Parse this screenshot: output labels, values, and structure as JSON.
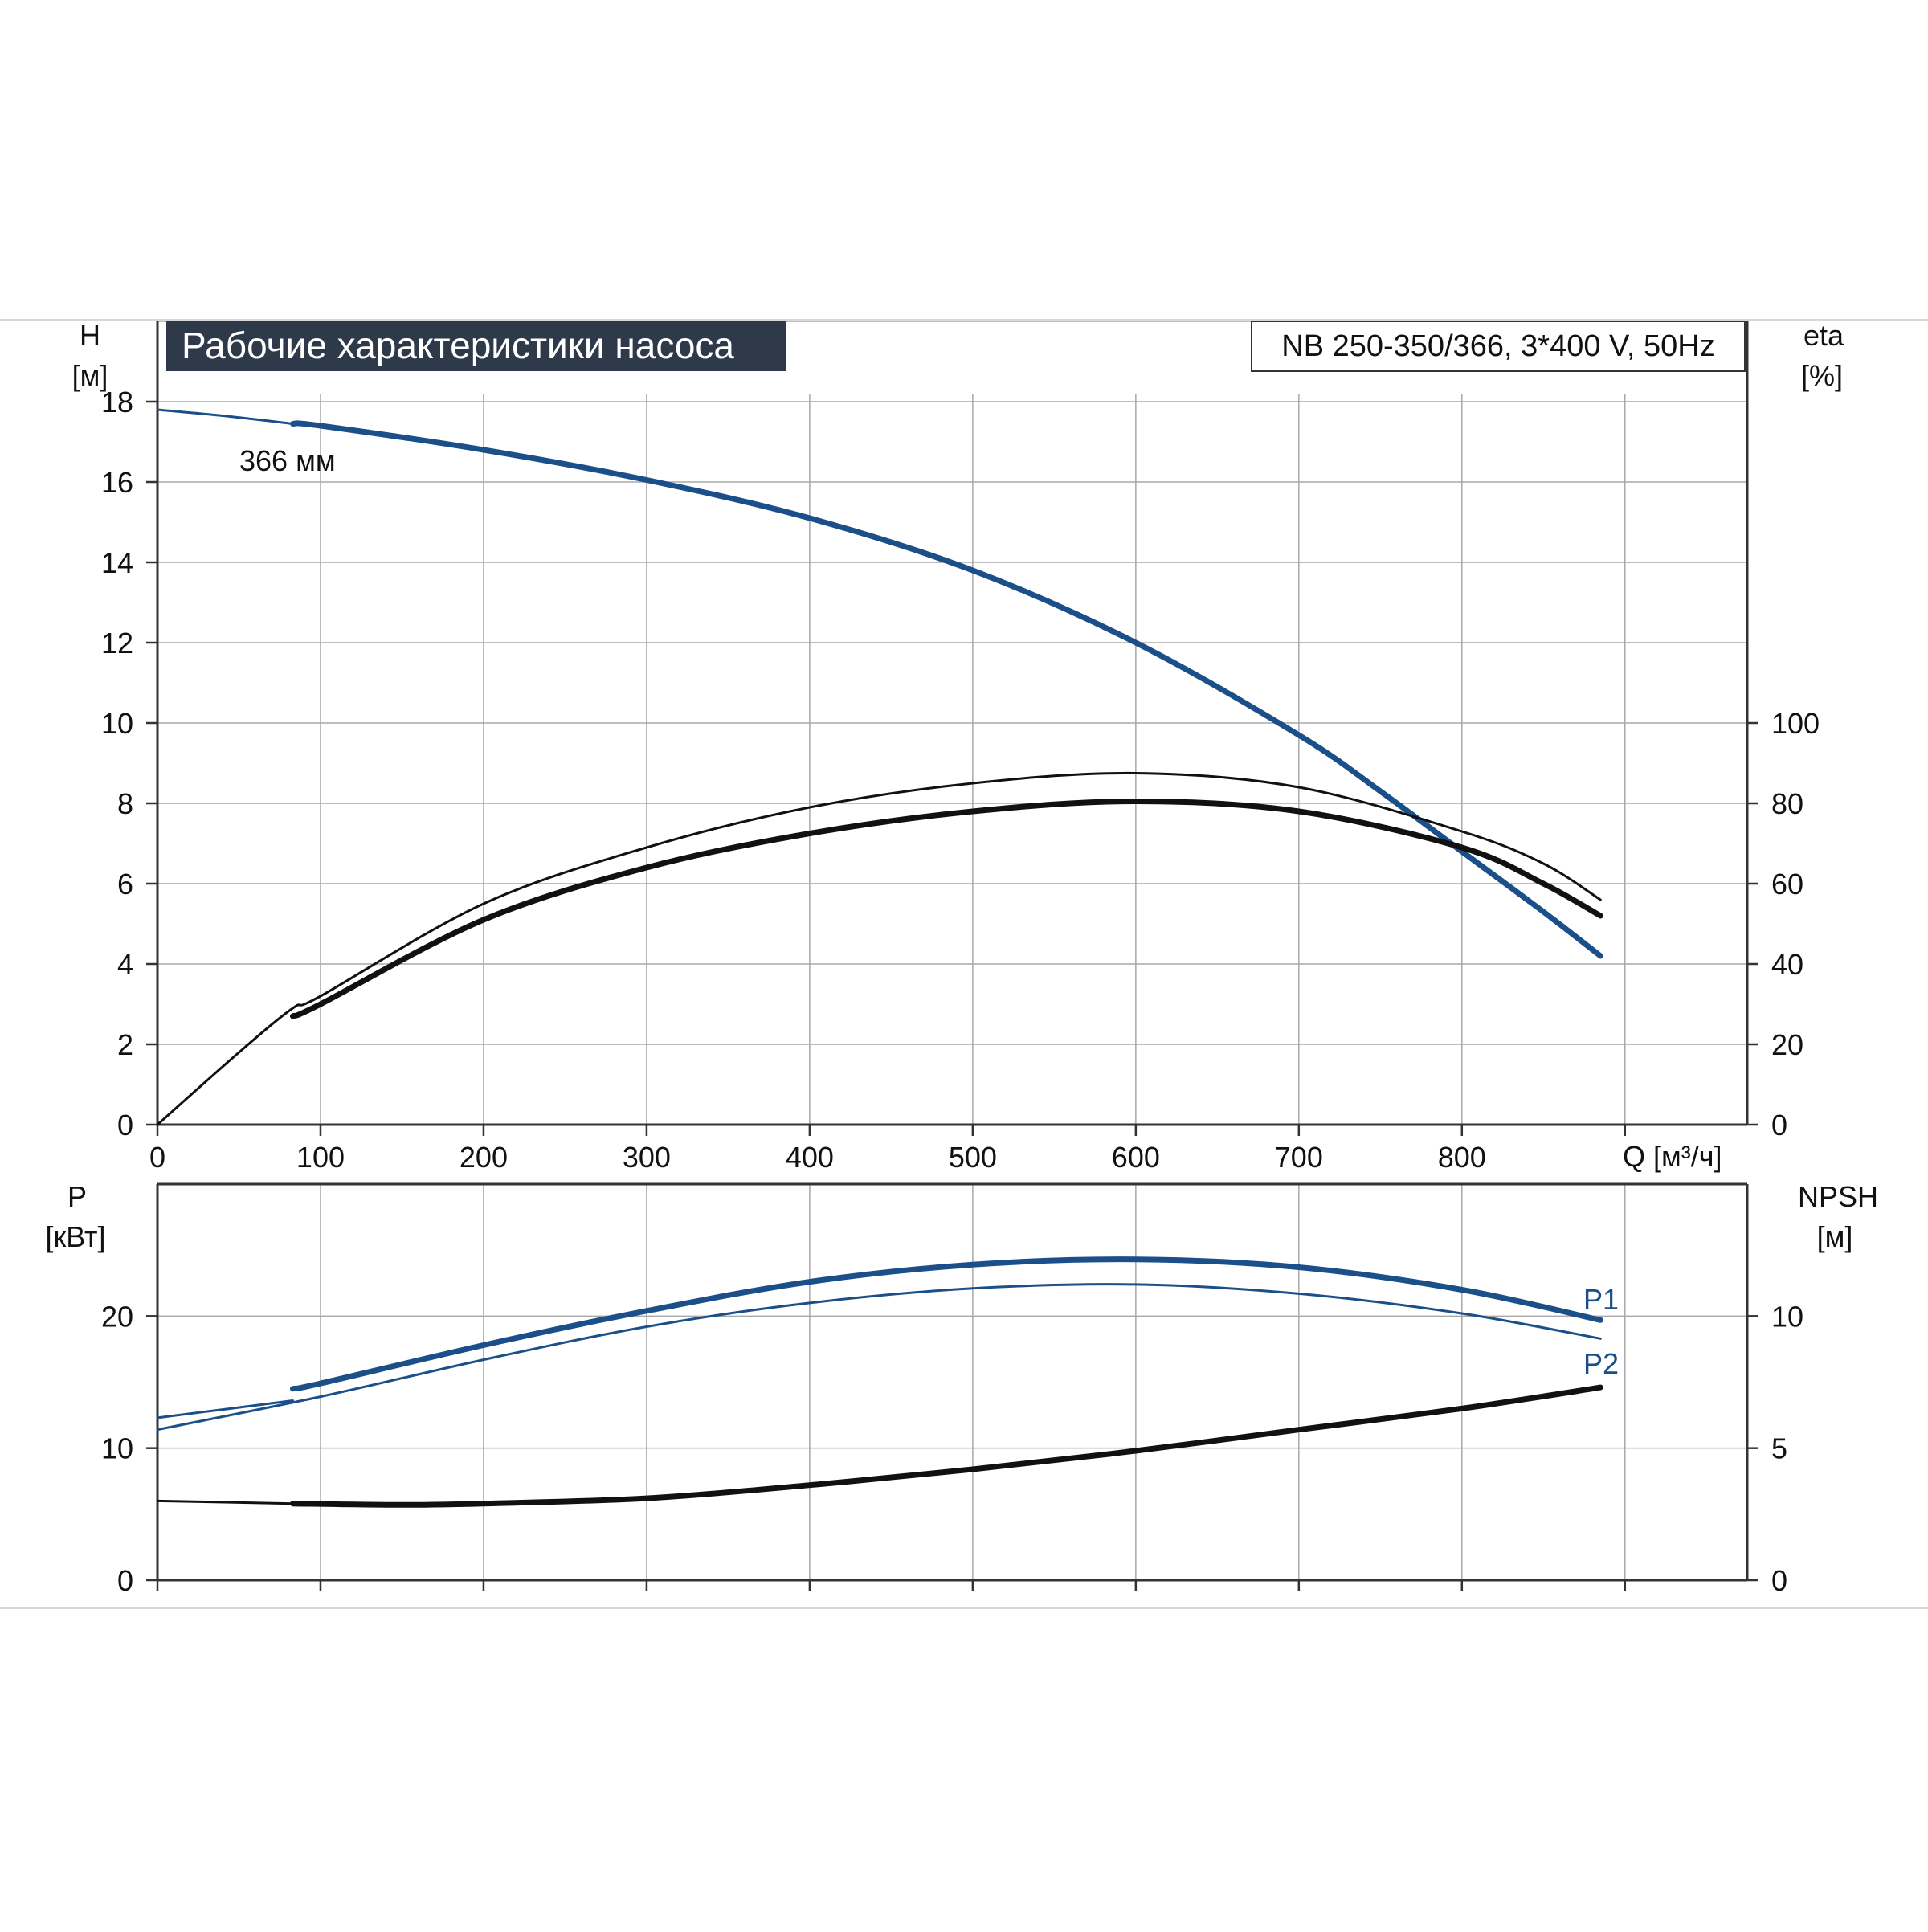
{
  "header": {
    "title": "Рабочие характеристики насоса",
    "model": "NB 250-350/366, 3*400 V, 50Hz"
  },
  "colors": {
    "title_bg": "#2e3a4a",
    "title_text": "#ffffff",
    "blue": "#1b4f8a",
    "black": "#111111",
    "grid": "#a8a8a8",
    "axis": "#333333"
  },
  "chart_data": [
    {
      "type": "line",
      "name": "upper",
      "x_axis": {
        "label": "Q [м³/ч]",
        "range": [
          0,
          975
        ],
        "ticks": [
          0,
          100,
          200,
          300,
          400,
          500,
          600,
          700,
          800
        ]
      },
      "y_left": {
        "label_line1": "H",
        "label_line2": "[м]",
        "range": [
          0,
          20
        ],
        "ticks": [
          0,
          2,
          4,
          6,
          8,
          10,
          12,
          14,
          16,
          18
        ]
      },
      "y_right": {
        "label_line1": "eta",
        "label_line2": "[%]",
        "range": [
          0,
          200
        ],
        "ticks": [
          0,
          20,
          40,
          60,
          80,
          100
        ]
      },
      "grid": true,
      "annotation": "366 мм",
      "series": [
        {
          "axis": "left",
          "color": "blue",
          "weight": "thin",
          "x": [
            0,
            40,
            83
          ],
          "y": [
            17.8,
            17.65,
            17.45
          ]
        },
        {
          "axis": "left",
          "color": "blue",
          "weight": "thick",
          "x": [
            83,
            100,
            200,
            300,
            400,
            500,
            600,
            700,
            750,
            800,
            850,
            885
          ],
          "y": [
            17.45,
            17.4,
            16.8,
            16.05,
            15.1,
            13.8,
            12.0,
            9.7,
            8.3,
            6.8,
            5.3,
            4.2
          ]
        },
        {
          "axis": "right",
          "color": "black",
          "weight": "thin",
          "x": [
            0,
            50,
            83,
            100,
            200,
            300,
            400,
            500,
            600,
            700,
            800,
            850,
            885
          ],
          "y": [
            0,
            18,
            29,
            32,
            55,
            69,
            79,
            85,
            87.5,
            84,
            73,
            65,
            56
          ]
        },
        {
          "axis": "right",
          "color": "black",
          "weight": "thick",
          "x": [
            83,
            100,
            200,
            300,
            400,
            500,
            600,
            700,
            800,
            850,
            885
          ],
          "y": [
            27,
            30,
            51,
            64,
            72.5,
            78,
            80.5,
            78,
            69,
            60,
            52
          ]
        }
      ]
    },
    {
      "type": "line",
      "name": "lower",
      "x_axis": {
        "range": [
          0,
          975
        ],
        "ticks": [
          0,
          100,
          200,
          300,
          400,
          500,
          600,
          700,
          800
        ]
      },
      "y_left": {
        "label_line1": "P",
        "label_line2": "[кВт]",
        "range": [
          0,
          30
        ],
        "ticks": [
          0,
          10,
          20
        ]
      },
      "y_right": {
        "label_line1": "NPSH",
        "label_line2": "[м]",
        "range": [
          0,
          15
        ],
        "ticks": [
          0,
          5,
          10
        ]
      },
      "grid": true,
      "series": [
        {
          "axis": "left",
          "name": "P1",
          "color": "blue",
          "weight": "thin",
          "x": [
            0,
            83
          ],
          "y": [
            12.3,
            13.6
          ]
        },
        {
          "axis": "left",
          "name": "P1",
          "color": "blue",
          "weight": "thick",
          "x": [
            83,
            100,
            200,
            300,
            400,
            500,
            600,
            700,
            800,
            885
          ],
          "y": [
            14.5,
            14.9,
            17.8,
            20.4,
            22.6,
            23.9,
            24.3,
            23.7,
            22.0,
            19.7
          ]
        },
        {
          "axis": "left",
          "name": "P2",
          "color": "blue",
          "weight": "thin",
          "x": [
            0,
            100,
            200,
            300,
            400,
            500,
            600,
            700,
            800,
            885
          ],
          "y": [
            11.4,
            13.9,
            16.7,
            19.2,
            21.0,
            22.1,
            22.4,
            21.7,
            20.2,
            18.3
          ]
        },
        {
          "axis": "right",
          "name": "NPSH",
          "color": "black",
          "weight": "thin",
          "x": [
            0,
            83
          ],
          "y": [
            3.0,
            2.9
          ]
        },
        {
          "axis": "right",
          "name": "NPSH",
          "color": "black",
          "weight": "thick",
          "x": [
            83,
            150,
            200,
            300,
            400,
            500,
            600,
            700,
            800,
            885
          ],
          "y": [
            2.9,
            2.85,
            2.9,
            3.1,
            3.6,
            4.2,
            4.9,
            5.7,
            6.5,
            7.3
          ]
        }
      ]
    }
  ]
}
